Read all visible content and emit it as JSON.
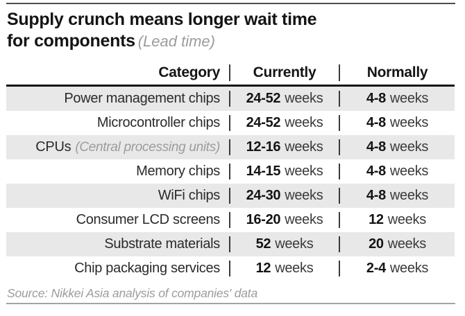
{
  "title": {
    "line1": "Supply crunch means longer wait time",
    "line2": "for components",
    "subtitle": "(Lead time)"
  },
  "table": {
    "columns": [
      "Category",
      "Currently",
      "Normally"
    ],
    "rows": [
      {
        "category": "Power management chips",
        "note": "",
        "currently": {
          "value": "24-52",
          "unit": "weeks"
        },
        "normally": {
          "value": "4-8",
          "unit": "weeks"
        }
      },
      {
        "category": "Microcontroller chips",
        "note": "",
        "currently": {
          "value": "24-52",
          "unit": "weeks"
        },
        "normally": {
          "value": "4-8",
          "unit": "weeks"
        }
      },
      {
        "category": "CPUs",
        "note": "(Central processing units)",
        "currently": {
          "value": "12-16",
          "unit": "weeks"
        },
        "normally": {
          "value": "4-8",
          "unit": "weeks"
        }
      },
      {
        "category": "Memory chips",
        "note": "",
        "currently": {
          "value": "14-15",
          "unit": "weeks"
        },
        "normally": {
          "value": "4-8",
          "unit": "weeks"
        }
      },
      {
        "category": "WiFi chips",
        "note": "",
        "currently": {
          "value": "24-30",
          "unit": "weeks"
        },
        "normally": {
          "value": "4-8",
          "unit": "weeks"
        }
      },
      {
        "category": "Consumer LCD screens",
        "note": "",
        "currently": {
          "value": "16-20",
          "unit": "weeks"
        },
        "normally": {
          "value": "12",
          "unit": "weeks"
        }
      },
      {
        "category": "Substrate materials",
        "note": "",
        "currently": {
          "value": "52",
          "unit": "weeks"
        },
        "normally": {
          "value": "20",
          "unit": "weeks"
        }
      },
      {
        "category": "Chip packaging services",
        "note": "",
        "currently": {
          "value": "12",
          "unit": "weeks"
        },
        "normally": {
          "value": "2-4",
          "unit": "weeks"
        }
      }
    ]
  },
  "source": "Source: Nikkei Asia analysis of companies' data",
  "colors": {
    "text": "#141414",
    "muted_text": "#9c9c9c",
    "stripe": "#e8e8e8",
    "divider": "#3a3a3a",
    "header_underline": "#141414",
    "top_rule": "#4d4d4d",
    "bottom_rule": "#a3a3a3"
  },
  "chart_data": {
    "type": "table",
    "title": "Supply crunch means longer wait time for components",
    "subtitle": "(Lead time)",
    "columns": [
      "Category",
      "Currently",
      "Normally"
    ],
    "rows": [
      [
        "Power management chips",
        "24-52 weeks",
        "4-8 weeks"
      ],
      [
        "Microcontroller chips",
        "24-52 weeks",
        "4-8 weeks"
      ],
      [
        "CPUs (Central processing units)",
        "12-16 weeks",
        "4-8 weeks"
      ],
      [
        "Memory chips",
        "14-15 weeks",
        "4-8 weeks"
      ],
      [
        "WiFi chips",
        "24-30 weeks",
        "4-8 weeks"
      ],
      [
        "Consumer LCD screens",
        "16-20 weeks",
        "12 weeks"
      ],
      [
        "Substrate materials",
        "52 weeks",
        "20 weeks"
      ],
      [
        "Chip packaging services",
        "12 weeks",
        "2-4 weeks"
      ]
    ],
    "source": "Source: Nikkei Asia analysis of companies' data"
  }
}
